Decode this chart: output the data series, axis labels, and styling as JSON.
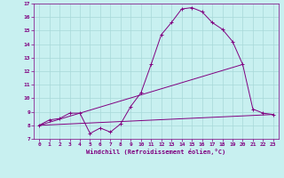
{
  "xlabel": "Windchill (Refroidissement éolien,°C)",
  "background_color": "#c8f0f0",
  "line_color": "#800080",
  "grid_color": "#a8d8d8",
  "xlim": [
    -0.5,
    23.5
  ],
  "ylim": [
    7,
    17
  ],
  "xticks": [
    0,
    1,
    2,
    3,
    4,
    5,
    6,
    7,
    8,
    9,
    10,
    11,
    12,
    13,
    14,
    15,
    16,
    17,
    18,
    19,
    20,
    21,
    22,
    23
  ],
  "yticks": [
    7,
    8,
    9,
    10,
    11,
    12,
    13,
    14,
    15,
    16,
    17
  ],
  "curve1_x": [
    0,
    1,
    2,
    3,
    4,
    5,
    6,
    7,
    8,
    9,
    10,
    11,
    12,
    13,
    14,
    15,
    16,
    17,
    18,
    19,
    20,
    21,
    22,
    23
  ],
  "curve1_y": [
    8.0,
    8.4,
    8.5,
    8.9,
    8.9,
    7.4,
    7.8,
    7.5,
    8.1,
    9.4,
    10.4,
    12.5,
    14.7,
    15.6,
    16.6,
    16.7,
    16.4,
    15.6,
    15.1,
    14.2,
    12.5,
    9.2,
    8.9,
    8.8
  ],
  "curve2_x": [
    0,
    23
  ],
  "curve2_y": [
    8.0,
    8.8
  ],
  "curve3_x": [
    0,
    20
  ],
  "curve3_y": [
    8.0,
    12.5
  ]
}
